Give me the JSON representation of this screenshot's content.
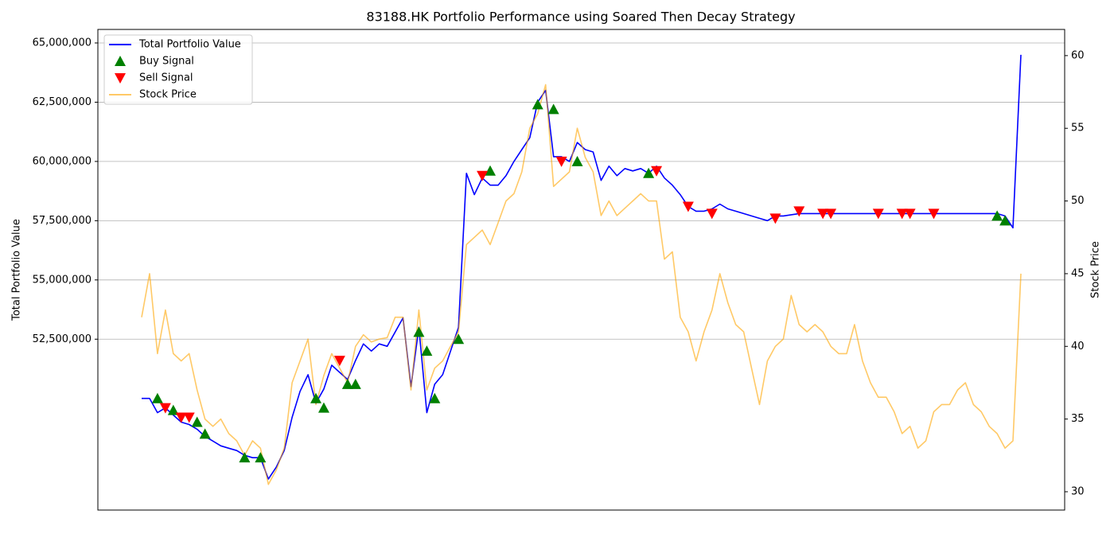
{
  "chart_data": {
    "type": "line",
    "title": "83188.HK Portfolio Performance using Soared Then Decay Strategy",
    "ylabel": "Total Portfolio Value",
    "y2label": "Stock Price",
    "ylim": [
      45290000,
      65570000
    ],
    "yticks": [
      {
        "value": 52500000,
        "label": "52,500,000"
      },
      {
        "value": 55000000,
        "label": "55,000,000"
      },
      {
        "value": 57500000,
        "label": "57,500,000"
      },
      {
        "value": 60000000,
        "label": "60,000,000"
      },
      {
        "value": 62500000,
        "label": "62,500,000"
      },
      {
        "value": 65000000,
        "label": "65,000,000"
      }
    ],
    "y2lim": [
      28.74,
      61.8
    ],
    "y2ticks": [
      30,
      35,
      40,
      45,
      50,
      55,
      60
    ],
    "grid": true,
    "legend": "upper left",
    "series": [
      {
        "name": "Total Portfolio Value",
        "color": "#0000ff",
        "axis": "y",
        "marker": "line",
        "values": [
          50000000,
          50000000,
          49400000,
          49600000,
          49300000,
          49000000,
          48900000,
          48700000,
          48400000,
          48200000,
          48000000,
          47900000,
          47800000,
          47600000,
          47500000,
          47500000,
          46600000,
          47100000,
          47800000,
          49200000,
          50300000,
          51000000,
          49800000,
          50400000,
          51400000,
          51100000,
          50800000,
          51600000,
          52300000,
          52000000,
          52300000,
          52200000,
          52800000,
          53400000,
          50500000,
          53000000,
          49400000,
          50600000,
          51000000,
          52000000,
          53000000,
          59500000,
          58600000,
          59300000,
          59000000,
          59000000,
          59400000,
          60000000,
          60500000,
          61000000,
          62500000,
          63000000,
          60200000,
          60200000,
          60000000,
          60800000,
          60500000,
          60400000,
          59200000,
          59800000,
          59400000,
          59700000,
          59600000,
          59700000,
          59500000,
          59800000,
          59300000,
          59000000,
          58600000,
          58100000,
          57900000,
          57900000,
          58000000,
          58200000,
          58000000,
          57900000,
          57800000,
          57700000,
          57600000,
          57500000,
          57700000,
          57700000,
          57750000,
          57800000,
          57800000,
          57800000,
          57800000,
          57800000,
          57800000,
          57800000,
          57800000,
          57800000,
          57800000,
          57800000,
          57800000,
          57800000,
          57800000,
          57800000,
          57800000,
          57800000,
          57800000,
          57800000,
          57800000,
          57800000,
          57800000,
          57800000,
          57800000,
          57800000,
          57800000,
          57700000,
          57200000,
          64500000
        ]
      },
      {
        "name": "Buy Signal",
        "color": "#008000",
        "axis": "y",
        "marker": "^",
        "values": [
          null,
          null,
          50000000,
          null,
          49500000,
          null,
          null,
          49000000,
          48500000,
          null,
          null,
          null,
          null,
          47500000,
          null,
          47500000,
          null,
          null,
          null,
          null,
          null,
          null,
          50000000,
          49600000,
          null,
          null,
          50600000,
          50600000,
          null,
          null,
          null,
          null,
          null,
          null,
          null,
          52800000,
          52000000,
          50000000,
          null,
          null,
          52500000,
          null,
          null,
          null,
          59600000,
          null,
          null,
          null,
          null,
          null,
          62400000,
          null,
          62200000,
          null,
          null,
          60000000,
          null,
          null,
          null,
          null,
          null,
          null,
          null,
          null,
          59500000,
          null,
          null,
          null,
          null,
          null,
          null,
          null,
          null,
          null,
          null,
          null,
          null,
          null,
          null,
          null,
          null,
          null,
          null,
          null,
          null,
          null,
          null,
          null,
          null,
          null,
          null,
          null,
          null,
          null,
          null,
          null,
          null,
          null,
          null,
          null,
          null,
          null,
          null,
          null,
          null,
          null,
          null,
          null,
          57700000,
          57500000,
          null,
          null
        ]
      },
      {
        "name": "Sell Signal",
        "color": "#ff0000",
        "axis": "y",
        "marker": "v",
        "values": [
          null,
          null,
          null,
          49600000,
          null,
          49200000,
          49200000,
          null,
          null,
          null,
          null,
          null,
          null,
          null,
          null,
          null,
          null,
          null,
          null,
          null,
          null,
          null,
          null,
          null,
          null,
          51600000,
          null,
          null,
          null,
          null,
          null,
          null,
          null,
          null,
          null,
          null,
          null,
          null,
          null,
          null,
          null,
          null,
          null,
          59400000,
          null,
          null,
          null,
          null,
          null,
          null,
          null,
          null,
          null,
          60000000,
          null,
          null,
          null,
          null,
          null,
          null,
          null,
          null,
          null,
          null,
          null,
          59600000,
          null,
          null,
          null,
          58100000,
          null,
          null,
          57800000,
          null,
          null,
          null,
          null,
          null,
          null,
          null,
          57600000,
          null,
          null,
          57900000,
          null,
          null,
          57800000,
          57800000,
          null,
          null,
          null,
          null,
          null,
          57800000,
          null,
          null,
          57800000,
          57800000,
          null,
          null,
          57800000,
          null,
          null,
          null,
          null,
          null,
          null,
          null,
          null,
          null,
          null,
          null
        ]
      },
      {
        "name": "Stock Price",
        "color": "#ffa500",
        "alpha": 0.6,
        "axis": "y2",
        "marker": "line",
        "values": [
          42,
          45,
          39.5,
          42.5,
          39.5,
          39,
          39.5,
          37,
          35,
          34.5,
          35,
          34,
          33.5,
          32.5,
          33.5,
          33,
          30.5,
          31.5,
          33,
          37.5,
          39,
          40.5,
          36,
          38,
          39.5,
          38.5,
          37.5,
          40,
          40.8,
          40.3,
          40.5,
          40.6,
          42,
          42,
          37,
          42.5,
          37,
          38.5,
          39,
          40,
          41,
          47,
          47.5,
          48,
          47,
          48.5,
          50,
          50.5,
          52,
          55,
          56,
          58,
          51,
          51.5,
          52,
          55,
          53,
          52,
          49,
          50,
          49,
          49.5,
          50,
          50.5,
          50,
          50,
          46,
          46.5,
          42,
          41,
          39,
          41,
          42.5,
          45,
          43,
          41.5,
          41,
          38.5,
          36,
          39,
          40,
          40.5,
          43.5,
          41.5,
          41,
          41.5,
          41,
          40,
          39.5,
          39.5,
          41.5,
          39,
          37.5,
          36.5,
          36.5,
          35.5,
          34,
          34.5,
          33,
          33.5,
          35.5,
          36,
          36,
          37,
          37.5,
          36,
          35.5,
          34.5,
          34,
          33,
          33.5,
          45
        ]
      }
    ]
  }
}
